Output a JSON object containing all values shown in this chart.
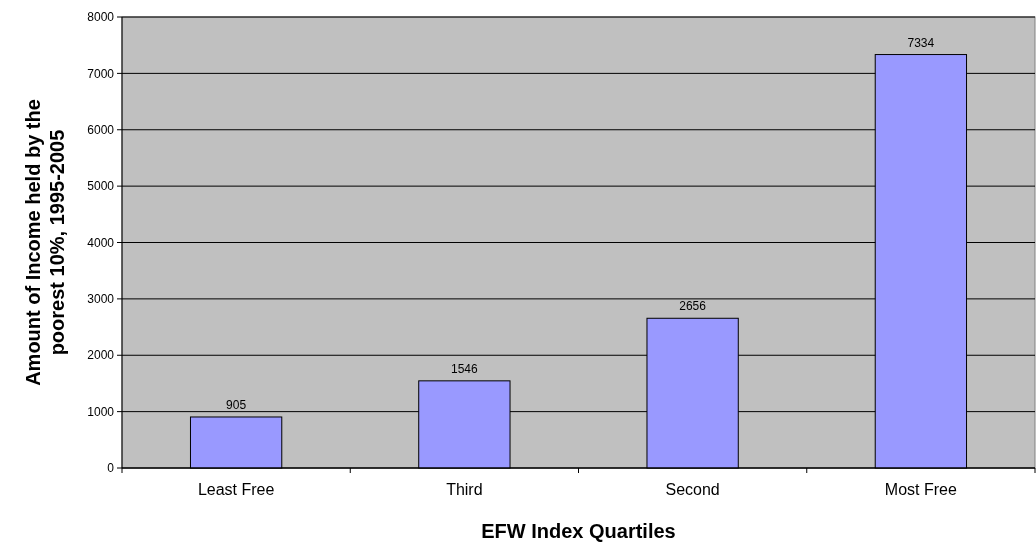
{
  "chart_data": {
    "type": "bar",
    "xlabel": "EFW Index Quartiles",
    "ylabel": "Amount of Income held by the poorest 10%, 1995-2005",
    "categories": [
      "Least Free",
      "Third",
      "Second",
      "Most Free"
    ],
    "values": [
      905,
      1546,
      2656,
      7334
    ],
    "color": "#9999ff",
    "ylim": [
      0,
      8000
    ],
    "yticks": [
      0,
      1000,
      2000,
      3000,
      4000,
      5000,
      6000,
      7000,
      8000
    ],
    "grid": "y",
    "data_labels": true
  }
}
